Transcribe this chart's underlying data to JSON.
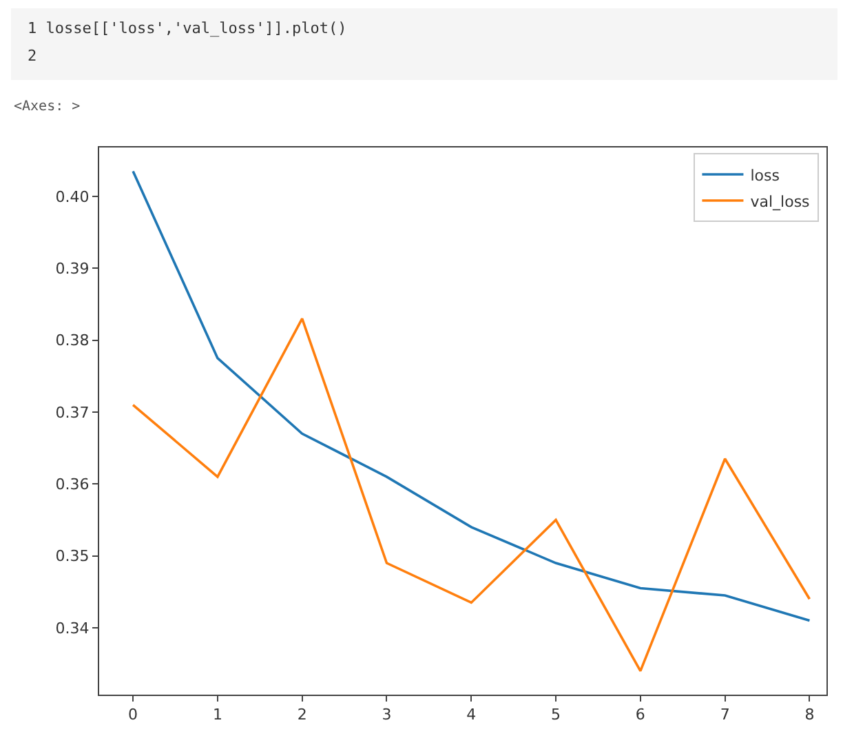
{
  "chart_data": {
    "type": "line",
    "annotations": [
      "1 losse[['loss','val_loss']].plot()",
      "2",
      "<Axes: >"
    ],
    "x": [
      0,
      1,
      2,
      3,
      4,
      5,
      6,
      7,
      8
    ],
    "series": [
      {
        "name": "loss",
        "color": "#1f77b4",
        "values": [
          0.4035,
          0.3775,
          0.367,
          0.361,
          0.354,
          0.349,
          0.3455,
          0.3445,
          0.341
        ]
      },
      {
        "name": "val_loss",
        "color": "#ff7f0e",
        "values": [
          0.371,
          0.361,
          0.383,
          0.349,
          0.3435,
          0.355,
          0.334,
          0.3635,
          0.344
        ]
      }
    ],
    "xlim": [
      -0.4,
      8.2
    ],
    "xticks": [
      0,
      1,
      2,
      3,
      4,
      5,
      6,
      7,
      8
    ],
    "ylim": [
      0.3307,
      0.4068
    ],
    "yticks": [
      {
        "value": 0.34,
        "label": "0.34"
      },
      {
        "value": 0.35,
        "label": "0.35"
      },
      {
        "value": 0.36,
        "label": "0.36"
      },
      {
        "value": 0.37,
        "label": "0.37"
      },
      {
        "value": 0.38,
        "label": "0.38"
      },
      {
        "value": 0.39,
        "label": "0.39"
      },
      {
        "value": 0.4,
        "label": "0.40"
      }
    ],
    "grid": false,
    "legend": "top right",
    "marker": "none",
    "line_style": "solid"
  }
}
